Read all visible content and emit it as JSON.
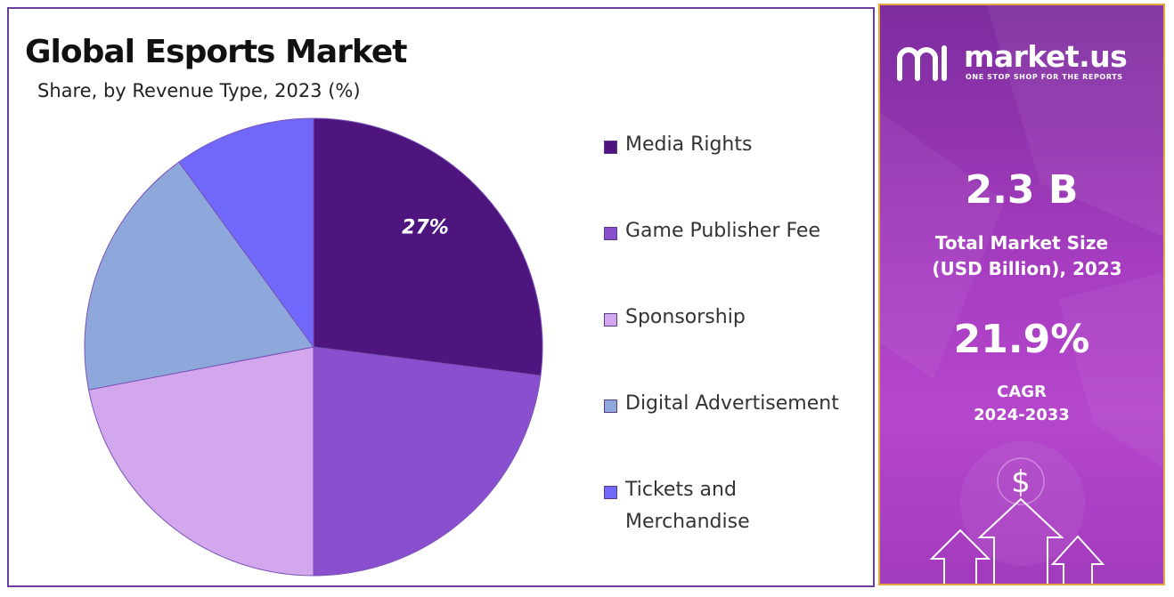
{
  "header": {
    "title": "Global Esports Market",
    "subtitle": "Share, by Revenue Type, 2023 (%)"
  },
  "chart_data": {
    "type": "pie",
    "title": "Global Esports Market",
    "subtitle": "Share, by Revenue Type, 2023 (%)",
    "slices": [
      {
        "label": "Media Rights",
        "value": 27,
        "color": "#4f157f",
        "data_label": "27%"
      },
      {
        "label": "Game Publisher Fee",
        "value": 23,
        "color": "#8a4fcf",
        "data_label": ""
      },
      {
        "label": "Sponsorship",
        "value": 22,
        "color": "#d2a7ee",
        "data_label": ""
      },
      {
        "label": "Digital Advertisement",
        "value": 18,
        "color": "#8fa8dc",
        "data_label": ""
      },
      {
        "label": "Tickets and Merchandise",
        "value": 10,
        "color": "#6f68fb",
        "data_label": ""
      }
    ],
    "legend_position": "right"
  },
  "legend": {
    "items": [
      {
        "lines": [
          "Media Rights"
        ],
        "color": "#4f157f"
      },
      {
        "lines": [
          "Game Publisher Fee"
        ],
        "color": "#8a4fcf"
      },
      {
        "lines": [
          "Sponsorship"
        ],
        "color": "#d2a7ee"
      },
      {
        "lines": [
          "Digital Advertisement"
        ],
        "color": "#8fa8dc"
      },
      {
        "lines": [
          "Tickets and",
          "Merchandise"
        ],
        "color": "#6f68fb"
      }
    ]
  },
  "sidebar": {
    "brand_name": "market.us",
    "brand_tagline": "ONE STOP SHOP FOR THE REPORTS",
    "market_size_value": "2.3 B",
    "market_size_label_line1": "Total Market Size",
    "market_size_label_line2": "(USD Billion), 2023",
    "cagr_value": "21.9%",
    "cagr_label_line1": "CAGR",
    "cagr_label_line2": "2024-2033",
    "dollar_symbol": "$",
    "icons": [
      "market-us-logo-icon",
      "dollar-coin-icon",
      "arrow-up-icon"
    ]
  }
}
